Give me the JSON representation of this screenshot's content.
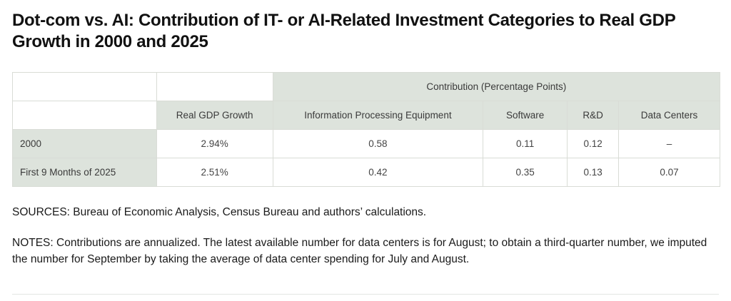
{
  "title": "Dot-com vs. AI: Contribution of IT- or AI-Related Investment Categories to Real GDP Growth in 2000 and 2025",
  "table": {
    "group_header": "Contribution (Percentage Points)",
    "columns": [
      "Real GDP Growth",
      "Information Processing Equipment",
      "Software",
      "R&D",
      "Data Centers"
    ],
    "rows": [
      {
        "label": "2000",
        "values": [
          "2.94%",
          "0.58",
          "0.11",
          "0.12",
          "–"
        ]
      },
      {
        "label": "First 9 Months of 2025",
        "values": [
          "2.51%",
          "0.42",
          "0.35",
          "0.13",
          "0.07"
        ]
      }
    ]
  },
  "sources": "SOURCES: Bureau of Economic Analysis, Census Bureau and authors’ calculations.",
  "notes": "NOTES: Contributions are annualized. The latest available number for data centers is for August; to obtain a third-quarter number, we imputed the number for September by taking the average of data center spending for July and August."
}
